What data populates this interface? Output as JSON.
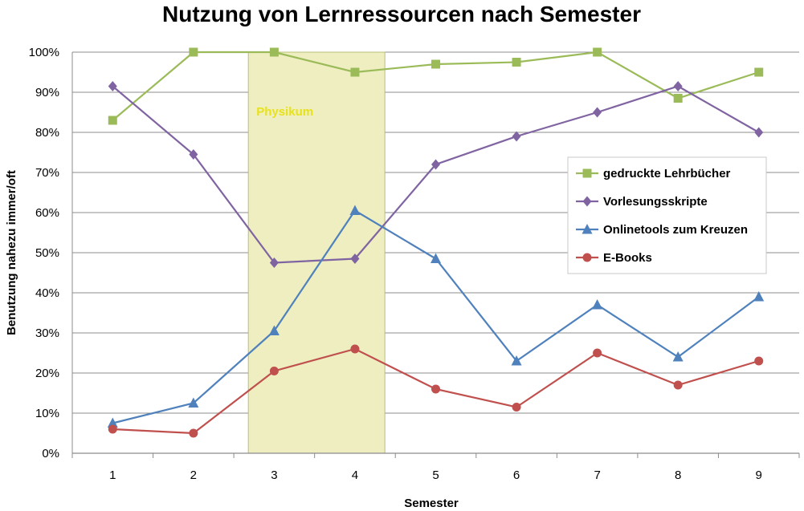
{
  "chart_data": {
    "type": "line",
    "title": "Nutzung von Lernressourcen nach Semester",
    "xlabel": "Semester",
    "ylabel": "Benutzung nahezu immer/oft",
    "x": [
      "1",
      "2",
      "3",
      "4",
      "5",
      "6",
      "7",
      "8",
      "9"
    ],
    "ylim": [
      0,
      100
    ],
    "yticks": [
      "0%",
      "10%",
      "20%",
      "30%",
      "40%",
      "50%",
      "60%",
      "70%",
      "80%",
      "90%",
      "100%"
    ],
    "grid": true,
    "legend_position": "right",
    "annotation": {
      "text": "Physikum",
      "x_range": [
        "3",
        "4"
      ],
      "color": "#eeeec0"
    },
    "series": [
      {
        "name": "gedruckte Lehrbücher",
        "marker": "square",
        "color": "#9bbb59",
        "values": [
          83,
          100,
          100,
          95,
          97,
          97.5,
          100,
          88.5,
          95
        ]
      },
      {
        "name": "Vorlesungsskripte",
        "marker": "diamond",
        "color": "#8064a2",
        "values": [
          91.5,
          74.5,
          47.5,
          48.5,
          72,
          79,
          85,
          91.5,
          80
        ]
      },
      {
        "name": "Onlinetools zum Kreuzen",
        "marker": "triangle",
        "color": "#4f81bd",
        "values": [
          7.5,
          12.5,
          30.5,
          60.5,
          48.5,
          23,
          37,
          24,
          39
        ]
      },
      {
        "name": "E-Books",
        "marker": "circle",
        "color": "#c0504d",
        "values": [
          6,
          5,
          20.5,
          26,
          16,
          11.5,
          25,
          17,
          23
        ]
      }
    ]
  }
}
